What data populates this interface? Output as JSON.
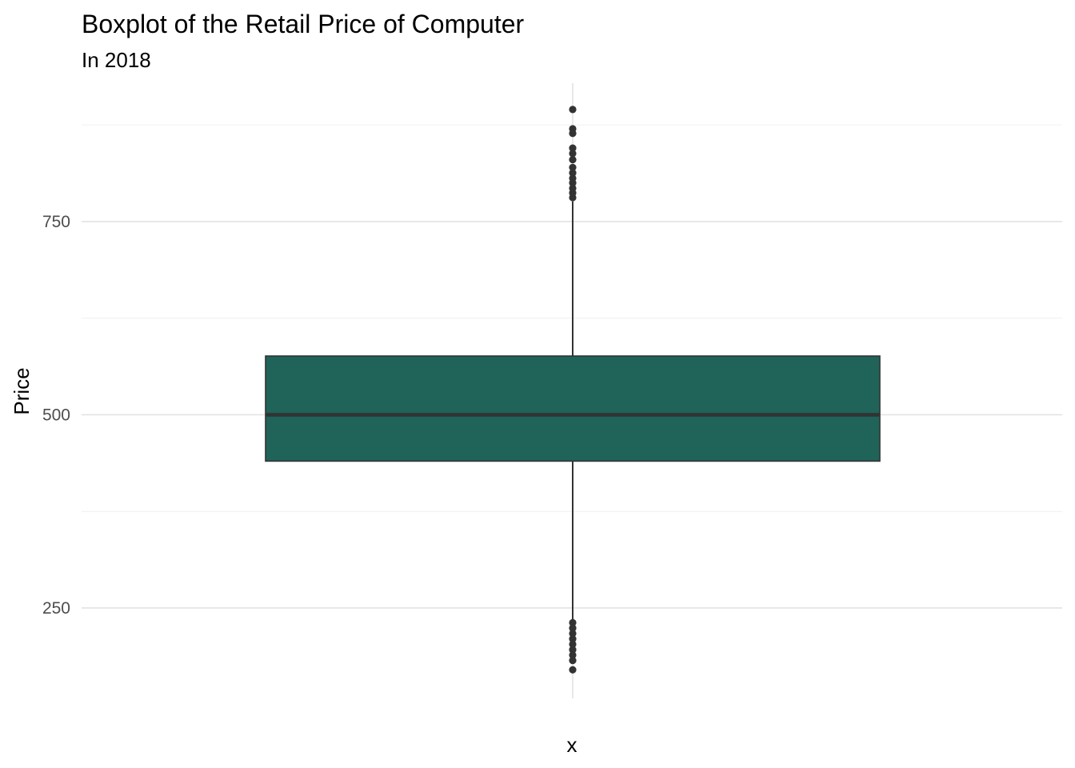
{
  "chart_data": {
    "type": "boxplot",
    "title": "Boxplot of the Retail Price of Computer",
    "subtitle": "In 2018",
    "xlabel": "x",
    "ylabel": "Price",
    "ylim": [
      133,
      929
    ],
    "yticks": [
      250,
      500,
      750
    ],
    "y_minor_gridlines": [
      375,
      625,
      875
    ],
    "grid": true,
    "box": {
      "category": "x",
      "q1": 440,
      "median": 500,
      "q3": 576,
      "whisker_low": 233,
      "whisker_high": 776,
      "fill": "#1f6359",
      "stroke": "#333333"
    },
    "outliers": [
      895,
      870,
      864,
      845,
      838,
      830,
      820,
      813,
      806,
      800,
      793,
      787,
      781,
      231,
      224,
      217,
      210,
      203,
      196,
      189,
      182,
      170
    ]
  }
}
